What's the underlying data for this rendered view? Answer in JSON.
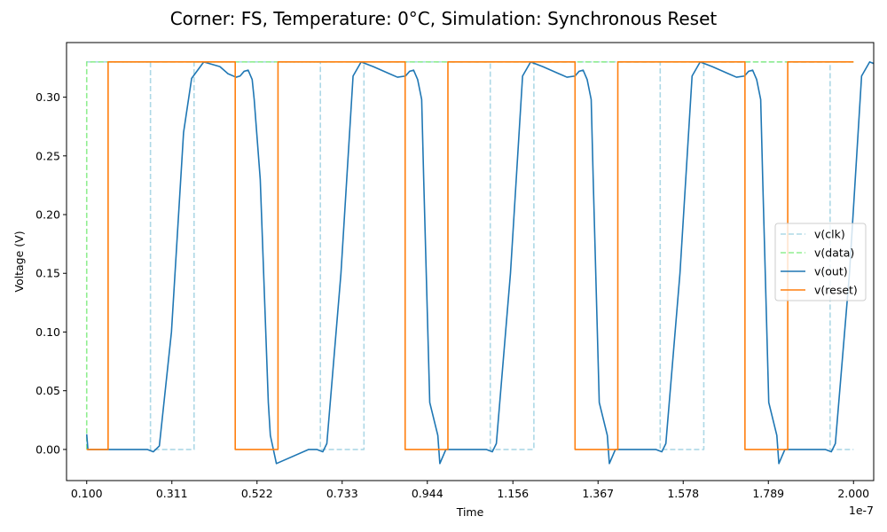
{
  "chart_data": {
    "type": "line",
    "title": "Corner: FS, Temperature: 0°C, Simulation: Synchronous Reset",
    "xlabel": "Time",
    "ylabel": "Voltage (V)",
    "x_scale_label": "1e-7",
    "xlim": [
      0.05,
      2.05
    ],
    "ylim": [
      -0.0265,
      0.3465
    ],
    "x_ticks": [
      0.1,
      0.311,
      0.522,
      0.733,
      0.944,
      1.156,
      1.367,
      1.578,
      1.789,
      2.0
    ],
    "x_tick_labels": [
      "0.100",
      "0.311",
      "0.522",
      "0.733",
      "0.944",
      "1.156",
      "1.367",
      "1.578",
      "1.789",
      "2.000"
    ],
    "y_ticks": [
      0.0,
      0.05,
      0.1,
      0.15,
      0.2,
      0.25,
      0.3
    ],
    "y_tick_labels": [
      "0.00",
      "0.05",
      "0.10",
      "0.15",
      "0.20",
      "0.25",
      "0.30"
    ],
    "grid": false,
    "legend_position": "center-right",
    "series": [
      {
        "name": "v(clk)",
        "color": "#add8e6",
        "dash": "dashed",
        "x": [
          0.1,
          0.258,
          0.258,
          0.366,
          0.366,
          0.679,
          0.679,
          0.787,
          0.787,
          1.1,
          1.1,
          1.208,
          1.208,
          1.521,
          1.521,
          1.629,
          1.629,
          1.942,
          1.942,
          2.0
        ],
        "y": [
          0.33,
          0.33,
          0.0,
          0.0,
          0.33,
          0.33,
          0.0,
          0.0,
          0.33,
          0.33,
          0.0,
          0.0,
          0.33,
          0.33,
          0.0,
          0.0,
          0.33,
          0.33,
          0.0,
          0.0
        ]
      },
      {
        "name": "v(data)",
        "color": "#90ee90",
        "dash": "dashed",
        "x": [
          0.1,
          0.1,
          2.0
        ],
        "y": [
          0.0,
          0.33,
          0.33
        ]
      },
      {
        "name": "v(out)",
        "color": "#1f77b4",
        "dash": "solid",
        "x": [
          0.1,
          0.103,
          0.11,
          0.2,
          0.25,
          0.265,
          0.28,
          0.31,
          0.34,
          0.36,
          0.39,
          0.43,
          0.45,
          0.47,
          0.48,
          0.49,
          0.5,
          0.51,
          0.515,
          0.53,
          0.55,
          0.555,
          0.57,
          0.65,
          0.67,
          0.685,
          0.695,
          0.73,
          0.76,
          0.78,
          0.81,
          0.85,
          0.87,
          0.89,
          0.9,
          0.91,
          0.92,
          0.93,
          0.935,
          0.95,
          0.97,
          0.975,
          0.99,
          1.07,
          1.09,
          1.105,
          1.115,
          1.15,
          1.18,
          1.2,
          1.23,
          1.27,
          1.29,
          1.31,
          1.32,
          1.33,
          1.34,
          1.35,
          1.355,
          1.37,
          1.39,
          1.395,
          1.41,
          1.49,
          1.51,
          1.525,
          1.535,
          1.57,
          1.6,
          1.62,
          1.65,
          1.69,
          1.71,
          1.73,
          1.74,
          1.75,
          1.76,
          1.77,
          1.775,
          1.79,
          1.81,
          1.815,
          1.83,
          1.91,
          1.93,
          1.945,
          1.955,
          1.99,
          2.02,
          2.04,
          2.07,
          2.1
        ],
        "y": [
          0.013,
          0.0,
          0.0,
          0.0,
          0.0,
          -0.002,
          0.003,
          0.1,
          0.27,
          0.316,
          0.33,
          0.326,
          0.32,
          0.317,
          0.318,
          0.322,
          0.323,
          0.315,
          0.298,
          0.23,
          0.04,
          0.012,
          -0.012,
          0.0,
          0.0,
          -0.002,
          0.005,
          0.15,
          0.318,
          0.33,
          0.326,
          0.32,
          0.317,
          0.318,
          0.322,
          0.323,
          0.315,
          0.298,
          0.23,
          0.04,
          0.012,
          -0.012,
          0.0,
          0.0,
          0.0,
          -0.002,
          0.005,
          0.15,
          0.318,
          0.33,
          0.326,
          0.32,
          0.317,
          0.318,
          0.322,
          0.323,
          0.315,
          0.298,
          0.23,
          0.04,
          0.012,
          -0.012,
          0.0,
          0.0,
          0.0,
          -0.002,
          0.005,
          0.15,
          0.318,
          0.33,
          0.326,
          0.32,
          0.317,
          0.318,
          0.322,
          0.323,
          0.315,
          0.298,
          0.23,
          0.04,
          0.012,
          -0.012,
          0.0,
          0.0,
          0.0,
          -0.002,
          0.005,
          0.15,
          0.318,
          0.33,
          0.326,
          0.32
        ]
      },
      {
        "name": "v(reset)",
        "color": "#ff7f0e",
        "dash": "solid",
        "x": [
          0.1,
          0.153,
          0.153,
          0.468,
          0.468,
          0.574,
          0.574,
          0.889,
          0.889,
          0.995,
          0.995,
          1.31,
          1.31,
          1.416,
          1.416,
          1.731,
          1.731,
          1.837,
          1.837,
          2.0
        ],
        "y": [
          0.0,
          0.0,
          0.33,
          0.33,
          0.0,
          0.0,
          0.33,
          0.33,
          0.0,
          0.0,
          0.33,
          0.33,
          0.0,
          0.0,
          0.33,
          0.33,
          0.0,
          0.0,
          0.33,
          0.33
        ]
      }
    ]
  }
}
